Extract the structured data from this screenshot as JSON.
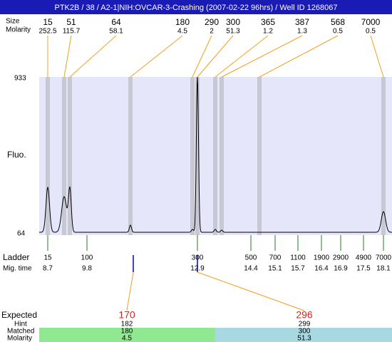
{
  "title": "PTK2B / 38 / A2-1|NIH:OVCAR-3-Crashing (2007-02-22 96hrs) / Well ID 1268067",
  "header_labels": {
    "size": "Size",
    "molarity": "Molarity"
  },
  "peaks": [
    {
      "size": 15,
      "molarity": 252.5
    },
    {
      "size": 51,
      "molarity": 115.7
    },
    {
      "size": 64,
      "molarity": 58.1
    },
    {
      "size": 180,
      "molarity": 4.5
    },
    {
      "size": 290,
      "molarity": 2
    },
    {
      "size": 300,
      "molarity": 51.3
    },
    {
      "size": 365,
      "molarity": 1.2
    },
    {
      "size": 387,
      "molarity": 1.3
    },
    {
      "size": 568,
      "molarity": 0.5
    },
    {
      "size": 7000,
      "molarity": 0.5
    }
  ],
  "y_axis": {
    "label": "Fluo.",
    "top": 933,
    "bottom": 64
  },
  "ladder": {
    "label": "Ladder",
    "time_label": "Mig. time",
    "items": [
      {
        "size": 15,
        "time": 8.7
      },
      {
        "size": 100,
        "time": 9.8
      },
      {
        "size": 300,
        "time": 12.9
      },
      {
        "size": 500,
        "time": 14.4
      },
      {
        "size": 700,
        "time": 15.1
      },
      {
        "size": 1100,
        "time": 15.7
      },
      {
        "size": 1900,
        "time": 16.4
      },
      {
        "size": 2900,
        "time": 16.9
      },
      {
        "size": 4900,
        "time": 17.5
      },
      {
        "size": 7000,
        "time": 18.1
      }
    ]
  },
  "expected": {
    "labels": {
      "expected": "Expected",
      "hint": "Hint",
      "matched": "Matched",
      "molarity": "Molarity"
    },
    "items": [
      {
        "expected": 170,
        "hint": 182,
        "matched": 180,
        "molarity": 4.5
      },
      {
        "expected": 296,
        "hint": 299,
        "matched": 300,
        "molarity": 51.3
      }
    ]
  }
}
